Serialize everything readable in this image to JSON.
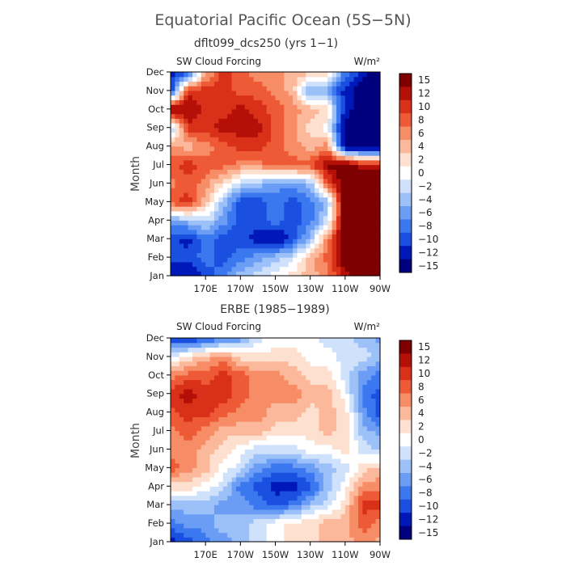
{
  "page": {
    "title": "Equatorial Pacific Ocean (5S−5N)"
  },
  "color_scale": {
    "levels": [
      -15,
      -12,
      -10,
      -8,
      -6,
      -4,
      -2,
      0,
      2,
      4,
      6,
      8,
      10,
      12,
      15
    ],
    "tick_labels": [
      "15",
      "12",
      "10",
      "8",
      "6",
      "4",
      "2",
      "0",
      "−2",
      "−4",
      "−6",
      "−8",
      "−10",
      "−12",
      "−15"
    ],
    "colors": [
      "#00007f",
      "#0018b8",
      "#1a4fe0",
      "#3b78f0",
      "#6b9df5",
      "#9cc0f8",
      "#cfe1fb",
      "#ffffff",
      "#fde0cf",
      "#fbb89a",
      "#f78d66",
      "#ee5a36",
      "#d9301a",
      "#b41008",
      "#7f0000"
    ]
  },
  "chart_data": [
    {
      "type": "heatmap",
      "title": "dflt099_dcs250 (yrs 1−1)",
      "left_label": "SW Cloud Forcing",
      "units_label": "W/m²",
      "ylabel": "Month",
      "x_tick_labels": [
        "170E",
        "170W",
        "150W",
        "130W",
        "110W",
        "90W"
      ],
      "x_ticks_deg_east": [
        170,
        190,
        210,
        230,
        250,
        270
      ],
      "xlim_deg_east": [
        150,
        270
      ],
      "y_tick_labels": [
        "Jan",
        "Feb",
        "Mar",
        "Apr",
        "May",
        "Jun",
        "Jul",
        "Aug",
        "Sep",
        "Oct",
        "Nov",
        "Dec"
      ],
      "x_deg_east": [
        150,
        160,
        170,
        180,
        190,
        200,
        210,
        220,
        230,
        240,
        250,
        260,
        270
      ],
      "y_months": [
        1,
        2,
        3,
        4,
        5,
        6,
        7,
        8,
        9,
        10,
        11,
        12
      ],
      "z": [
        [
          -14,
          -14,
          -10,
          -8,
          -4,
          -2,
          0,
          2,
          4,
          6,
          12,
          16,
          16
        ],
        [
          -10,
          -10,
          -8,
          -10,
          -8,
          -6,
          -4,
          -2,
          4,
          8,
          16,
          16,
          16
        ],
        [
          -10,
          -12,
          -8,
          -10,
          -10,
          -12,
          -14,
          -10,
          -4,
          6,
          16,
          16,
          16
        ],
        [
          -6,
          -4,
          -2,
          -6,
          -10,
          -10,
          -8,
          -10,
          -8,
          -2,
          16,
          16,
          16
        ],
        [
          8,
          10,
          4,
          -4,
          -10,
          -10,
          -8,
          -10,
          -8,
          -4,
          16,
          16,
          16
        ],
        [
          6,
          8,
          6,
          2,
          -2,
          -4,
          -6,
          -6,
          -4,
          8,
          16,
          16,
          16
        ],
        [
          8,
          10,
          8,
          8,
          6,
          6,
          8,
          8,
          8,
          14,
          16,
          12,
          12
        ],
        [
          6,
          4,
          6,
          8,
          10,
          10,
          8,
          6,
          4,
          6,
          -15,
          -16,
          -16
        ],
        [
          -4,
          10,
          10,
          12,
          12,
          12,
          8,
          6,
          2,
          0,
          -15,
          -16,
          -16
        ],
        [
          14,
          14,
          10,
          10,
          12,
          10,
          8,
          6,
          4,
          2,
          -12,
          -16,
          -16
        ],
        [
          -12,
          10,
          10,
          10,
          8,
          8,
          6,
          4,
          -6,
          -6,
          -12,
          -16,
          -16
        ],
        [
          -12,
          -10,
          4,
          10,
          8,
          6,
          6,
          4,
          4,
          2,
          -8,
          -12,
          -16
        ]
      ]
    },
    {
      "type": "heatmap",
      "title": "ERBE (1985−1989)",
      "left_label": "SW Cloud Forcing",
      "units_label": "W/m²",
      "ylabel": "Month",
      "x_tick_labels": [
        "170E",
        "170W",
        "150W",
        "130W",
        "110W",
        "90W"
      ],
      "x_ticks_deg_east": [
        170,
        190,
        210,
        230,
        250,
        270
      ],
      "xlim_deg_east": [
        150,
        270
      ],
      "y_tick_labels": [
        "Jan",
        "Feb",
        "Mar",
        "Apr",
        "May",
        "Jun",
        "Jul",
        "Aug",
        "Sep",
        "Oct",
        "Nov",
        "Dec"
      ],
      "x_deg_east": [
        150,
        160,
        170,
        180,
        190,
        200,
        210,
        220,
        230,
        240,
        250,
        260,
        270
      ],
      "y_months": [
        1,
        2,
        3,
        4,
        5,
        6,
        7,
        8,
        9,
        10,
        11,
        12
      ],
      "z": [
        [
          -12,
          -10,
          -8,
          -6,
          -4,
          -2,
          0,
          2,
          2,
          4,
          4,
          6,
          4
        ],
        [
          -8,
          -6,
          -6,
          -4,
          -4,
          -2,
          0,
          2,
          2,
          4,
          4,
          8,
          6
        ],
        [
          -4,
          -4,
          -4,
          -6,
          -6,
          -8,
          -10,
          -8,
          -4,
          -2,
          2,
          10,
          10
        ],
        [
          2,
          2,
          0,
          -2,
          -8,
          -10,
          -12,
          -12,
          -10,
          -4,
          0,
          6,
          6
        ],
        [
          8,
          6,
          4,
          0,
          -2,
          -6,
          -8,
          -8,
          -6,
          -4,
          -2,
          2,
          4
        ],
        [
          6,
          6,
          4,
          2,
          0,
          -2,
          -2,
          -2,
          0,
          0,
          2,
          -2,
          -4
        ],
        [
          6,
          8,
          6,
          4,
          4,
          4,
          2,
          2,
          2,
          4,
          2,
          -4,
          -6
        ],
        [
          8,
          10,
          10,
          8,
          6,
          6,
          4,
          4,
          2,
          4,
          2,
          -6,
          -10
        ],
        [
          10,
          12,
          10,
          10,
          8,
          6,
          6,
          6,
          4,
          4,
          0,
          -8,
          -10
        ],
        [
          6,
          8,
          8,
          10,
          8,
          6,
          6,
          4,
          2,
          2,
          -2,
          -6,
          -8
        ],
        [
          -2,
          2,
          4,
          6,
          2,
          2,
          2,
          2,
          0,
          0,
          -2,
          -2,
          -4
        ],
        [
          -10,
          -12,
          -10,
          -8,
          -6,
          -2,
          0,
          0,
          0,
          -2,
          -2,
          -4,
          -6
        ]
      ]
    }
  ]
}
